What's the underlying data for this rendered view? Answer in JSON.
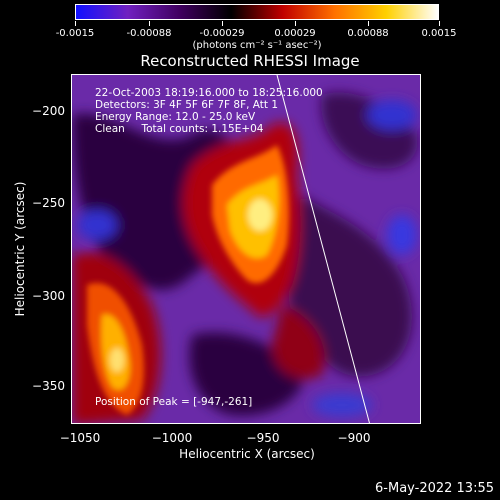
{
  "colorbar": {
    "tick_labels": [
      "-0.0015",
      "-0.00088",
      "-0.00029",
      "0.00029",
      "0.00088",
      "0.0015"
    ],
    "units": "(photons cm⁻² s⁻¹ asec⁻²)",
    "colors": [
      "#1010ff",
      "#7020c0",
      "#400060",
      "#000000",
      "#c00000",
      "#ff7000",
      "#ffd000",
      "#ffffff"
    ]
  },
  "title": "Reconstructed RHESSI Image",
  "info_lines": [
    "22-Oct-2003 18:19:16.000 to 18:25:16.000",
    "Detectors: 3F 4F 5F 6F 7F 8F, Att 1",
    "Energy Range: 12.0 - 25.0 keV",
    "Clean     Total counts: 1.15E+04"
  ],
  "peak_text": "Position of Peak = [-947,-261]",
  "axes": {
    "xlabel": "Heliocentric X (arcsec)",
    "ylabel": "Heliocentric Y (arcsec)",
    "x_ticks": [
      "-1050",
      "-1000",
      "-950",
      "-900"
    ],
    "y_ticks": [
      "-200",
      "-250",
      "-300",
      "-350"
    ]
  },
  "footer_date": "6-May-2022 13:55"
}
